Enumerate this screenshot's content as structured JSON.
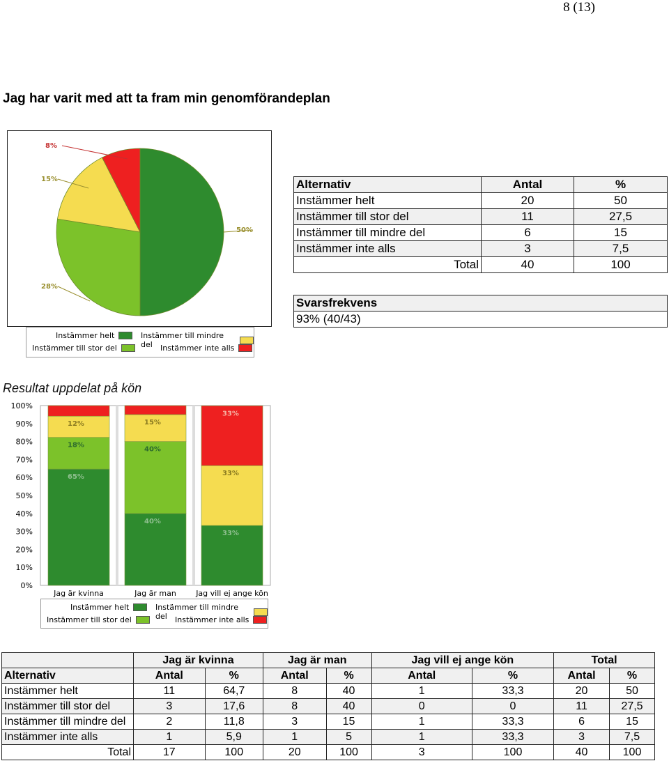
{
  "page_number": "8 (13)",
  "heading": "Jag har varit med att ta fram min genomförandeplan",
  "colors": {
    "helt": "#2e8b2e",
    "stor": "#7cc22a",
    "mindre": "#f5dc50",
    "inte": "#ee2020"
  },
  "summary_table": {
    "headers": [
      "Alternativ",
      "Antal",
      "%"
    ],
    "rows": [
      [
        "Instämmer helt",
        "20",
        "50"
      ],
      [
        "Instämmer till stor del",
        "11",
        "27,5"
      ],
      [
        "Instämmer till mindre del",
        "6",
        "15"
      ],
      [
        "Instämmer inte alls",
        "3",
        "7,5"
      ]
    ],
    "total": [
      "Total",
      "40",
      "100"
    ]
  },
  "response_rate": {
    "label": "Svarsfrekvens",
    "value": "93% (40/43)"
  },
  "legend": {
    "helt": "Instämmer helt",
    "stor": "Instämmer till stor del",
    "mindre": "Instämmer till mindre del",
    "inte": "Instämmer inte alls"
  },
  "subheading": "Resultat uppdelat på kön",
  "chart_data": [
    {
      "type": "pie",
      "labels": [
        "Instämmer helt",
        "Instämmer till stor del",
        "Instämmer till mindre del",
        "Instämmer inte alls"
      ],
      "values": [
        50,
        27.5,
        15,
        7.5
      ],
      "slice_labels": [
        "50%",
        "28%",
        "15%",
        "8%"
      ]
    },
    {
      "type": "bar",
      "stacked": true,
      "categories": [
        "Jag är kvinna",
        "Jag är man",
        "Jag vill ej ange kön"
      ],
      "series": [
        {
          "name": "Instämmer helt",
          "values": [
            64.7,
            40,
            33.3
          ],
          "labels": [
            "65%",
            "40%",
            "33%"
          ]
        },
        {
          "name": "Instämmer till stor del",
          "values": [
            17.6,
            40,
            0
          ],
          "labels": [
            "18%",
            "40%",
            ""
          ]
        },
        {
          "name": "Instämmer till mindre del",
          "values": [
            11.8,
            15,
            33.3
          ],
          "labels": [
            "12%",
            "15%",
            "33%"
          ]
        },
        {
          "name": "Instämmer inte alls",
          "values": [
            5.9,
            5,
            33.3
          ],
          "labels": [
            "",
            "",
            "33%"
          ]
        }
      ],
      "yticks": [
        "0%",
        "10%",
        "20%",
        "30%",
        "40%",
        "50%",
        "60%",
        "70%",
        "80%",
        "90%",
        "100%"
      ],
      "ylim": [
        0,
        100
      ]
    }
  ],
  "gender_table": {
    "groups": [
      "Jag är kvinna",
      "Jag är man",
      "Jag vill ej ange kön",
      "Total"
    ],
    "subheaders": [
      "Alternativ",
      "Antal",
      "%",
      "Antal",
      "%",
      "Antal",
      "%",
      "Antal",
      "%"
    ],
    "rows": [
      [
        "Instämmer helt",
        "11",
        "64,7",
        "8",
        "40",
        "1",
        "33,3",
        "20",
        "50"
      ],
      [
        "Instämmer till stor del",
        "3",
        "17,6",
        "8",
        "40",
        "0",
        "0",
        "11",
        "27,5"
      ],
      [
        "Instämmer till mindre del",
        "2",
        "11,8",
        "3",
        "15",
        "1",
        "33,3",
        "6",
        "15"
      ],
      [
        "Instämmer inte alls",
        "1",
        "5,9",
        "1",
        "5",
        "1",
        "33,3",
        "3",
        "7,5"
      ]
    ],
    "total": [
      "Total",
      "17",
      "100",
      "20",
      "100",
      "3",
      "100",
      "40",
      "100"
    ]
  }
}
